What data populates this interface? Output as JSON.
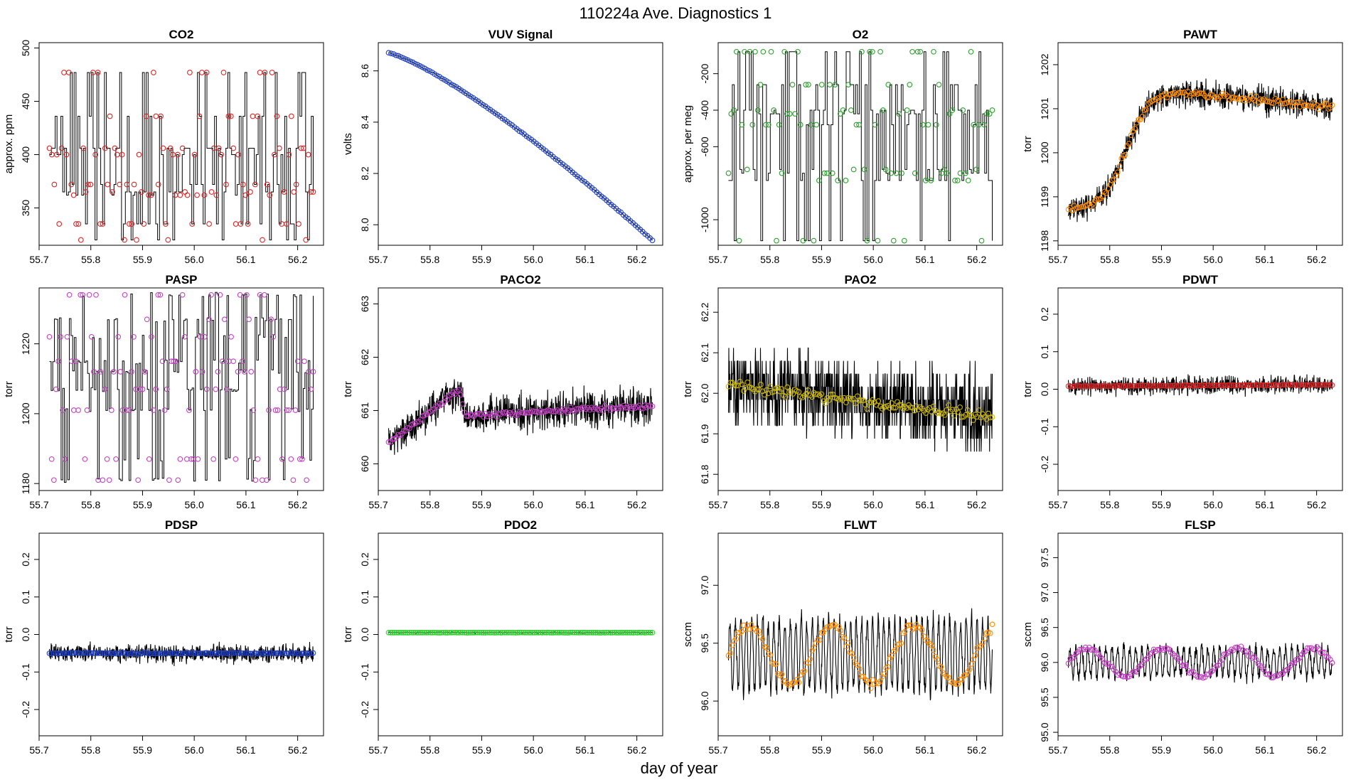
{
  "figure": {
    "title": "110224a   Ave. Diagnostics 1",
    "xlabel": "day of year"
  },
  "chart_data": [
    {
      "type": "line",
      "title": "CO2",
      "ylabel": "approx. ppm",
      "xlim": [
        55.72,
        56.23
      ],
      "ylim": [
        315,
        505
      ],
      "xticks": [
        55.7,
        55.8,
        55.9,
        56.0,
        56.1,
        56.2
      ],
      "xtick_labels": [
        "55.7",
        "55.8",
        "55.9",
        "56.0",
        "56.1",
        "56.2"
      ],
      "yticks": [
        350,
        400,
        450,
        500
      ],
      "ytick_labels": [
        "350",
        "400",
        "450",
        "500"
      ],
      "point_color": "#d62728",
      "line": {
        "kind": "square",
        "levels": [
          320,
          335,
          362,
          365,
          372,
          400,
          406,
          436,
          477
        ],
        "base": 362,
        "noise": 0,
        "count": 140,
        "seed": 3
      },
      "points": {
        "kind": "square",
        "levels": [
          320,
          335,
          362,
          365,
          372,
          400,
          406,
          436,
          477
        ],
        "count": 110,
        "seed": 5
      }
    },
    {
      "type": "line",
      "title": "VUV Signal",
      "ylabel": "volts",
      "xlim": [
        55.72,
        56.23
      ],
      "ylim": [
        7.92,
        8.71
      ],
      "xticks": [
        55.7,
        55.8,
        55.9,
        56.0,
        56.1,
        56.2
      ],
      "xtick_labels": [
        "55.7",
        "55.8",
        "55.9",
        "56.0",
        "56.1",
        "56.2"
      ],
      "yticks": [
        8.0,
        8.2,
        8.4,
        8.6
      ],
      "ytick_labels": [
        "8.0",
        "8.2",
        "8.4",
        "8.6"
      ],
      "point_color": "#1f3fbf",
      "line": {
        "kind": "curve",
        "start": 8.67,
        "end": 7.94,
        "curv": 0.9,
        "noise": 0.004,
        "count": 120,
        "seed": 7
      },
      "points": {
        "kind": "curve",
        "start": 8.67,
        "end": 7.94,
        "curv": 0.9,
        "noise": 0.002,
        "count": 110,
        "seed": 8
      }
    },
    {
      "type": "line",
      "title": "O2",
      "ylabel": "approx. per meg",
      "xlim": [
        55.72,
        56.23
      ],
      "ylim": [
        -1140,
        -30
      ],
      "xticks": [
        55.7,
        55.8,
        55.9,
        56.0,
        56.1,
        56.2
      ],
      "xtick_labels": [
        "55.7",
        "55.8",
        "55.9",
        "56.0",
        "56.1",
        "56.2"
      ],
      "yticks": [
        -1000,
        -600,
        -400,
        -200
      ],
      "ytick_labels": [
        "-1000",
        "-600",
        "-400",
        "-200"
      ],
      "point_color": "#2ca02c",
      "line": {
        "kind": "square",
        "levels": [
          -1115,
          -785,
          -745,
          -725,
          -480,
          -420,
          -400,
          -260,
          -80
        ],
        "base": -400,
        "noise": 0,
        "count": 140,
        "seed": 11
      },
      "points": {
        "kind": "square",
        "levels": [
          -1115,
          -785,
          -745,
          -725,
          -480,
          -420,
          -400,
          -260,
          -80
        ],
        "count": 100,
        "seed": 12
      }
    },
    {
      "type": "line",
      "title": "PAWT",
      "ylabel": "torr",
      "xlim": [
        55.72,
        56.23
      ],
      "ylim": [
        1197.9,
        1202.5
      ],
      "xticks": [
        55.7,
        55.8,
        55.9,
        56.0,
        56.1,
        56.2
      ],
      "xtick_labels": [
        "55.7",
        "55.8",
        "55.9",
        "56.0",
        "56.1",
        "56.2"
      ],
      "yticks": [
        1198,
        1199,
        1200,
        1201,
        1202
      ],
      "ytick_labels": [
        "1198",
        "1199",
        "1200",
        "1201",
        "1202"
      ],
      "point_color": "#ff8c00",
      "line": {
        "kind": "sigmoid",
        "lo": 1198.7,
        "hi": 1201.5,
        "drift": -0.6,
        "mid": 0.22,
        "noise": 0.45,
        "count": 900,
        "seed": 13
      },
      "points": {
        "kind": "sigmoid",
        "lo": 1198.7,
        "hi": 1201.5,
        "drift": -0.6,
        "mid": 0.22,
        "noise": 0.1,
        "count": 140,
        "seed": 14
      }
    },
    {
      "type": "line",
      "title": "PASP",
      "ylabel": "torr",
      "xlim": [
        55.72,
        56.23
      ],
      "ylim": [
        1178,
        1236
      ],
      "xticks": [
        55.7,
        55.8,
        55.9,
        56.0,
        56.1,
        56.2
      ],
      "xtick_labels": [
        "55.7",
        "55.8",
        "55.9",
        "56.0",
        "56.1",
        "56.2"
      ],
      "yticks": [
        1180,
        1200,
        1220
      ],
      "ytick_labels": [
        "1180",
        "1200",
        "1220"
      ],
      "point_color": "#c040c0",
      "line": {
        "kind": "square",
        "levels": [
          1181,
          1187,
          1201,
          1207,
          1212,
          1215,
          1222,
          1227,
          1234
        ],
        "base": 1215,
        "noise": 1,
        "count": 160,
        "seed": 17
      },
      "points": {
        "kind": "square",
        "levels": [
          1181,
          1187,
          1201,
          1207,
          1212,
          1215,
          1222,
          1227,
          1234
        ],
        "count": 120,
        "seed": 18
      }
    },
    {
      "type": "line",
      "title": "PACO2",
      "ylabel": "torr",
      "xlim": [
        55.72,
        56.23
      ],
      "ylim": [
        659.5,
        663.3
      ],
      "xticks": [
        55.7,
        55.8,
        55.9,
        56.0,
        56.1,
        56.2
      ],
      "xtick_labels": [
        "55.7",
        "55.8",
        "55.9",
        "56.0",
        "56.1",
        "56.2"
      ],
      "yticks": [
        660,
        661,
        662,
        663
      ],
      "ytick_labels": [
        "660",
        "661",
        "662",
        "663"
      ],
      "point_color": "#c040c0",
      "line": {
        "kind": "bump",
        "base": 660.9,
        "start": 660.4,
        "peak": 661.4,
        "peakAt": 0.27,
        "noise": 0.5,
        "count": 900,
        "seed": 19
      },
      "points": {
        "kind": "bump",
        "base": 660.9,
        "start": 660.4,
        "peak": 661.4,
        "peakAt": 0.27,
        "noise": 0.06,
        "count": 140,
        "seed": 20
      }
    },
    {
      "type": "line",
      "title": "PAO2",
      "ylabel": "torr",
      "xlim": [
        55.72,
        56.23
      ],
      "ylim": [
        61.76,
        62.26
      ],
      "xticks": [
        55.7,
        55.8,
        55.9,
        56.0,
        56.1,
        56.2
      ],
      "xtick_labels": [
        "55.7",
        "55.8",
        "55.9",
        "56.0",
        "56.1",
        "56.2"
      ],
      "yticks": [
        61.8,
        61.9,
        62.0,
        62.1,
        62.2
      ],
      "ytick_labels": [
        "61.8",
        "61.9",
        "62.0",
        "62.1",
        "62.2"
      ],
      "point_color": "#c8b400",
      "line": {
        "kind": "quant",
        "base": 62.02,
        "end": 61.95,
        "noise": 0.14,
        "step": 0.032,
        "count": 900,
        "seed": 23
      },
      "points": {
        "kind": "linear",
        "start": 62.02,
        "end": 61.94,
        "noise": 0.02,
        "count": 140,
        "seed": 24
      }
    },
    {
      "type": "line",
      "title": "PDWT",
      "ylabel": "torr",
      "xlim": [
        55.72,
        56.23
      ],
      "ylim": [
        -0.27,
        0.27
      ],
      "xticks": [
        55.7,
        55.8,
        55.9,
        56.0,
        56.1,
        56.2
      ],
      "xtick_labels": [
        "55.7",
        "55.8",
        "55.9",
        "56.0",
        "56.1",
        "56.2"
      ],
      "yticks": [
        -0.2,
        -0.1,
        0.0,
        0.1,
        0.2
      ],
      "ytick_labels": [
        "-0.2",
        "-0.1",
        "0.0",
        "0.1",
        "0.2"
      ],
      "point_color": "#d62728",
      "line": {
        "kind": "linear",
        "start": 0.008,
        "end": 0.012,
        "noise": 0.035,
        "count": 900,
        "seed": 29
      },
      "points": {
        "kind": "linear",
        "start": 0.008,
        "end": 0.012,
        "noise": 0.002,
        "count": 140,
        "seed": 30
      }
    },
    {
      "type": "line",
      "title": "PDSP",
      "ylabel": "torr",
      "xlim": [
        55.72,
        56.23
      ],
      "ylim": [
        -0.27,
        0.27
      ],
      "xticks": [
        55.7,
        55.8,
        55.9,
        56.0,
        56.1,
        56.2
      ],
      "xtick_labels": [
        "55.7",
        "55.8",
        "55.9",
        "56.0",
        "56.1",
        "56.2"
      ],
      "yticks": [
        -0.2,
        -0.1,
        0.0,
        0.1,
        0.2
      ],
      "ytick_labels": [
        "-0.2",
        "-0.1",
        "0.0",
        "0.1",
        "0.2"
      ],
      "point_color": "#1f3fbf",
      "line": {
        "kind": "linear",
        "start": -0.05,
        "end": -0.05,
        "noise": 0.035,
        "count": 900,
        "seed": 31
      },
      "points": {
        "kind": "linear",
        "start": -0.05,
        "end": -0.05,
        "noise": 0.002,
        "count": 140,
        "seed": 32
      }
    },
    {
      "type": "line",
      "title": "PDO2",
      "ylabel": "torr",
      "xlim": [
        55.72,
        56.23
      ],
      "ylim": [
        -0.27,
        0.27
      ],
      "xticks": [
        55.7,
        55.8,
        55.9,
        56.0,
        56.1,
        56.2
      ],
      "xtick_labels": [
        "55.7",
        "55.8",
        "55.9",
        "56.0",
        "56.1",
        "56.2"
      ],
      "yticks": [
        -0.2,
        -0.1,
        0.0,
        0.1,
        0.2
      ],
      "ytick_labels": [
        "-0.2",
        "-0.1",
        "0.0",
        "0.1",
        "0.2"
      ],
      "point_color": "#2ecc2e",
      "line": {
        "kind": "linear",
        "start": 0.005,
        "end": 0.005,
        "noise": 0.003,
        "count": 400,
        "seed": 37
      },
      "points": {
        "kind": "linear",
        "start": 0.005,
        "end": 0.005,
        "noise": 0.0005,
        "count": 140,
        "seed": 38
      }
    },
    {
      "type": "line",
      "title": "FLWT",
      "ylabel": "sccm",
      "xlim": [
        55.72,
        56.23
      ],
      "ylim": [
        95.7,
        97.45
      ],
      "xticks": [
        55.7,
        55.8,
        55.9,
        56.0,
        56.1,
        56.2
      ],
      "xtick_labels": [
        "55.7",
        "55.8",
        "55.9",
        "56.0",
        "56.1",
        "56.2"
      ],
      "yticks": [
        96.0,
        96.5,
        97.0
      ],
      "ytick_labels": [
        "96.0",
        "96.5",
        "97.0"
      ],
      "point_color": "#ff8c00",
      "line": {
        "kind": "osc",
        "base": 96.4,
        "amp": 0.3,
        "freq": 48,
        "noise": 0.12,
        "count": 900,
        "seed": 41
      },
      "points": {
        "kind": "osc",
        "base": 96.4,
        "amp": 0.25,
        "freq": 3.2,
        "noise": 0.05,
        "count": 140,
        "seed": 42
      }
    },
    {
      "type": "line",
      "title": "FLSP",
      "ylabel": "sccm",
      "xlim": [
        55.72,
        56.23
      ],
      "ylim": [
        94.95,
        97.85
      ],
      "xticks": [
        55.7,
        55.8,
        55.9,
        56.0,
        56.1,
        56.2
      ],
      "xtick_labels": [
        "55.7",
        "55.8",
        "55.9",
        "56.0",
        "56.1",
        "56.2"
      ],
      "yticks": [
        95.0,
        95.5,
        96.0,
        96.5,
        97.0,
        97.5
      ],
      "ytick_labels": [
        "95.0",
        "95.5",
        "96.0",
        "96.5",
        "97.0",
        "97.5"
      ],
      "point_color": "#c040c0",
      "line": {
        "kind": "osc",
        "base": 96.0,
        "amp": 0.2,
        "freq": 44,
        "noise": 0.14,
        "count": 900,
        "seed": 43
      },
      "points": {
        "kind": "osc",
        "base": 96.0,
        "amp": 0.2,
        "freq": 3.5,
        "noise": 0.05,
        "count": 140,
        "seed": 44
      }
    }
  ]
}
